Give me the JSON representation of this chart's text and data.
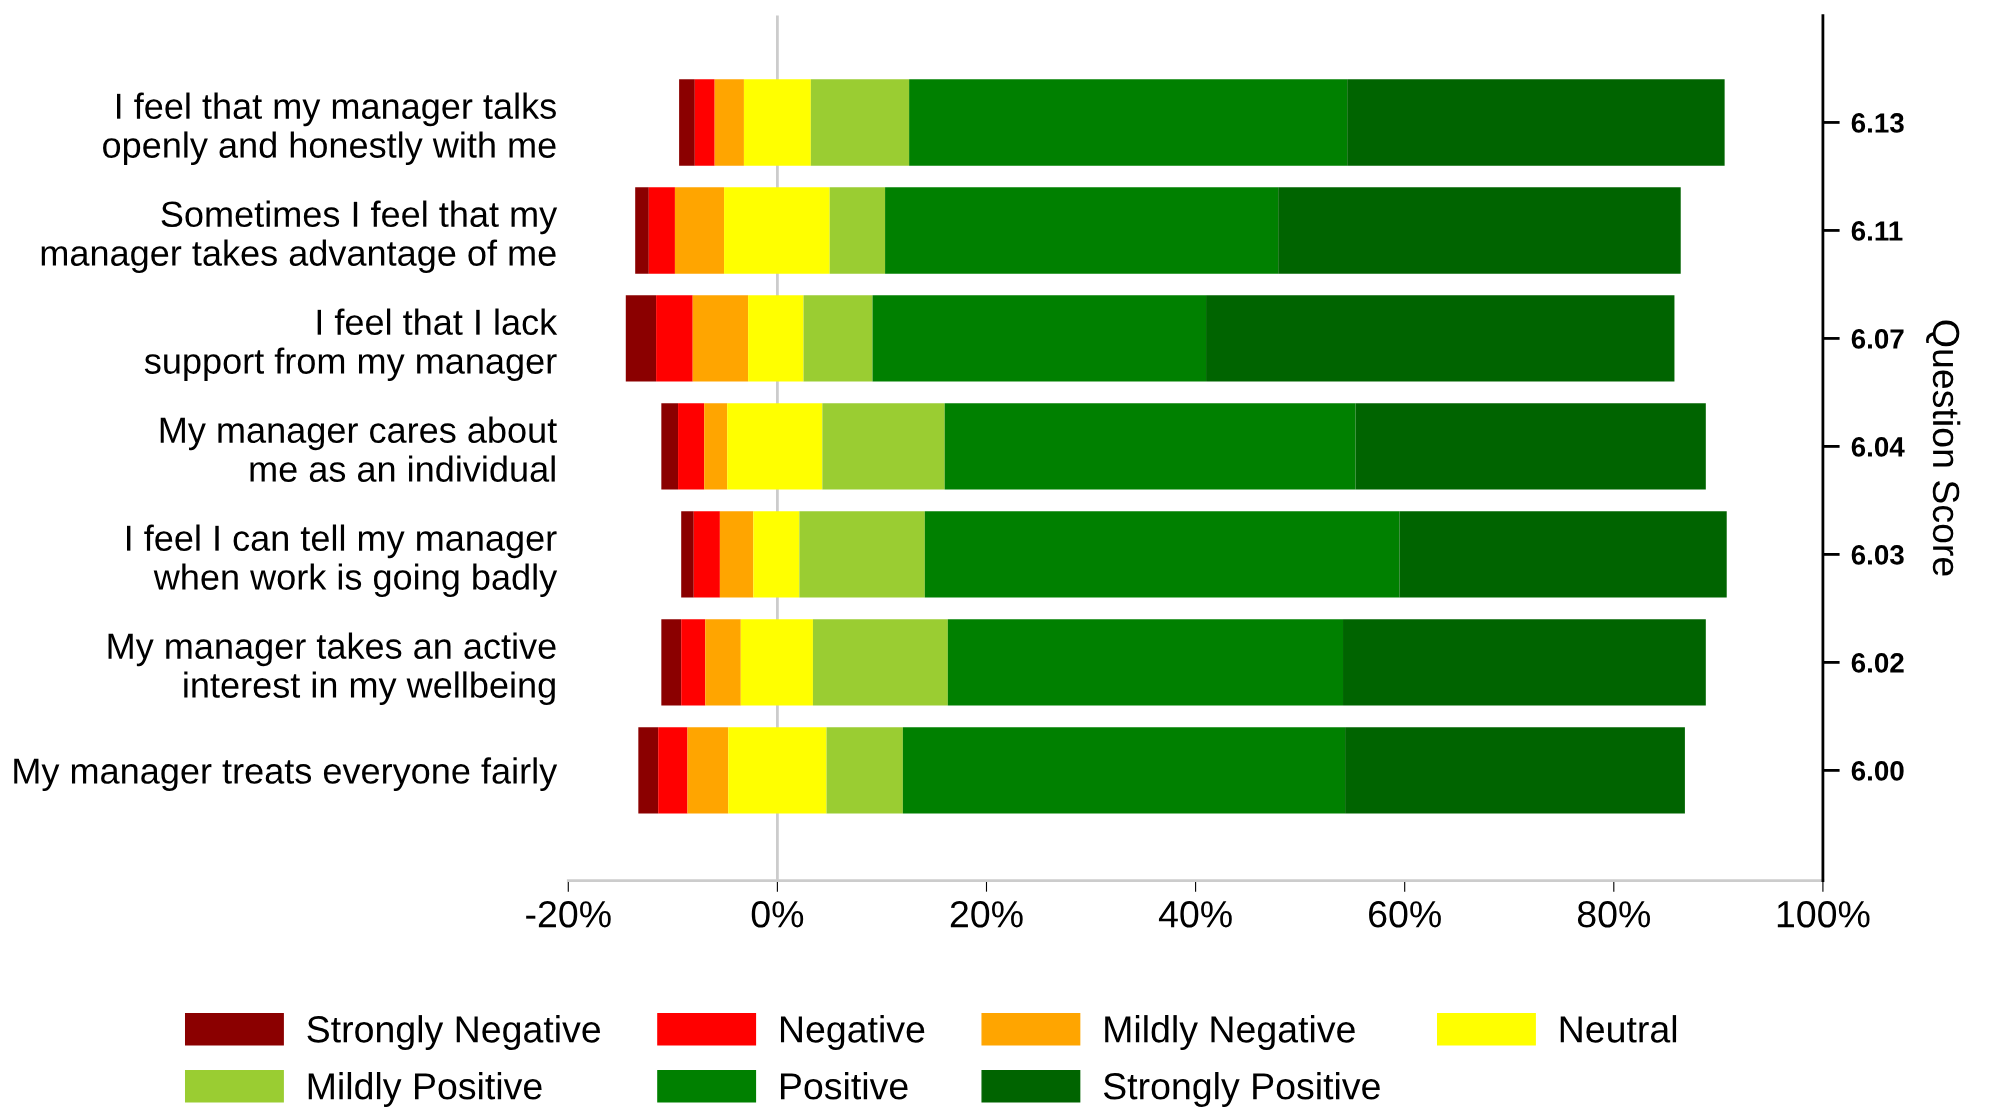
{
  "chart_data": {
    "type": "bar",
    "orientation": "horizontal",
    "categories": [
      "I feel that my manager talks\nopenly and honestly with me",
      "Sometimes I feel that my\nmanager takes advantage of me",
      "I feel that I lack\nsupport from my manager",
      "My manager cares about\nme as an individual",
      "I feel I can tell my manager\nwhen work is going badly",
      "My manager takes an active\ninterest in my wellbeing",
      "My manager treats everyone fairly"
    ],
    "y2_categories": [
      "6.13",
      "6.11",
      "6.07",
      "6.04",
      "6.03",
      "6.02",
      "6.00"
    ],
    "y2label": "Question Score",
    "series": [
      {
        "name": "Strongly Negative",
        "color": "#8b0000",
        "base": [
          -9.4,
          -13.6,
          -14.5,
          -11.1,
          -9.2,
          -11.1,
          -13.3
        ],
        "values": [
          1.5,
          1.3,
          2.9,
          1.6,
          1.2,
          1.9,
          1.9
        ]
      },
      {
        "name": "Negative",
        "color": "#ff0000",
        "base": [
          -7.9,
          -12.3,
          -11.6,
          -9.5,
          -8.0,
          -9.2,
          -11.4
        ],
        "values": [
          1.9,
          2.5,
          3.5,
          2.5,
          2.5,
          2.3,
          2.8
        ]
      },
      {
        "name": "Mildly Negative",
        "color": "#ffa500",
        "base": [
          -6.0,
          -9.8,
          -8.1,
          -7.0,
          -5.5,
          -6.9,
          -8.6
        ],
        "values": [
          2.8,
          4.7,
          5.3,
          2.2,
          3.2,
          3.4,
          3.9
        ]
      },
      {
        "name": "Neutral",
        "color": "#ffff00",
        "base": [
          -3.2,
          -5.1,
          -2.8,
          -4.8,
          -2.3,
          -3.5,
          -4.7
        ],
        "values": [
          6.4,
          10.1,
          5.3,
          9.1,
          4.4,
          6.9,
          9.4
        ]
      },
      {
        "name": "Mildly Positive",
        "color": "#9acd32",
        "base": [
          3.2,
          5.0,
          2.5,
          4.3,
          2.1,
          3.4,
          4.7
        ],
        "values": [
          9.4,
          5.3,
          6.6,
          11.7,
          12.0,
          12.9,
          7.3
        ]
      },
      {
        "name": "Positive",
        "color": "#008000",
        "base": [
          12.6,
          10.3,
          9.1,
          16.0,
          14.1,
          16.3,
          12.0
        ],
        "values": [
          41.9,
          37.6,
          31.9,
          39.3,
          45.4,
          37.8,
          42.3
        ]
      },
      {
        "name": "Strongly Positive",
        "color": "#006400",
        "base": [
          54.5,
          47.9,
          41.0,
          55.3,
          59.5,
          54.1,
          54.3
        ],
        "values": [
          36.1,
          38.5,
          44.8,
          33.5,
          31.3,
          34.7,
          32.5
        ]
      }
    ],
    "xlim": [
      -20,
      100
    ],
    "xticks": [
      {
        "value": -20,
        "label": "-20%"
      },
      {
        "value": 0,
        "label": "0%"
      },
      {
        "value": 20,
        "label": "20%"
      },
      {
        "value": 40,
        "label": "40%"
      },
      {
        "value": 60,
        "label": "60%"
      },
      {
        "value": 80,
        "label": "80%"
      },
      {
        "value": 100,
        "label": "100%"
      }
    ],
    "ref_lines": [
      {
        "axis": "x",
        "value": 0,
        "color": "#cccccc"
      }
    ],
    "legend": "bottom",
    "grid": false
  }
}
